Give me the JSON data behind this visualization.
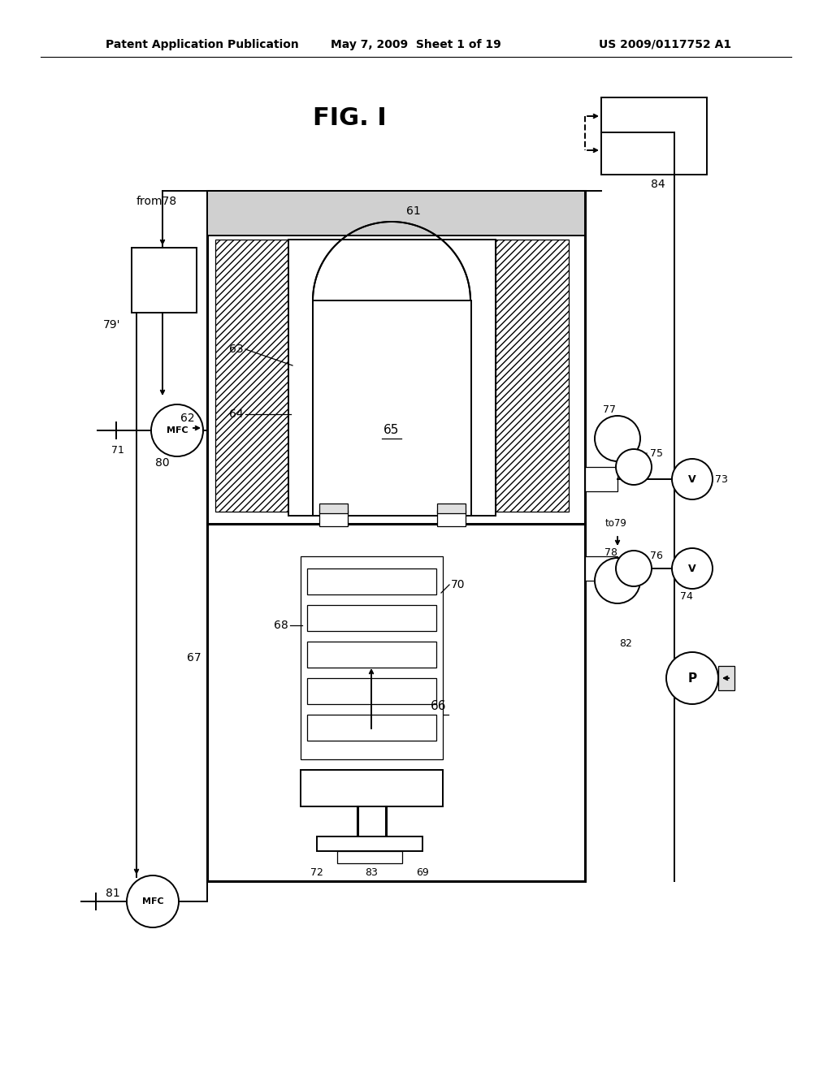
{
  "bg_color": "#ffffff",
  "header_text": "Patent Application Publication",
  "header_date": "May 7, 2009  Sheet 1 of 19",
  "header_patent": "US 2009/0117752 A1",
  "title": "FIG. I"
}
